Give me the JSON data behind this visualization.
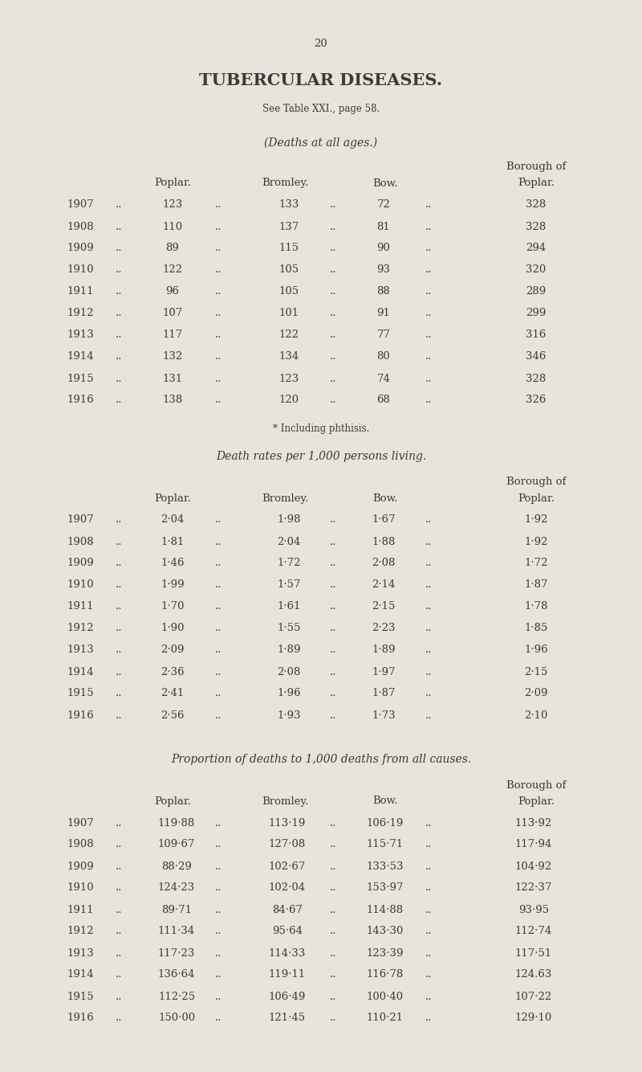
{
  "page_number": "20",
  "title": "TUBERCULAR DISEASES.",
  "subtitle": "See Table XXI., page 58.",
  "bg_color": "#e8e4db",
  "text_color": "#3a3a3a",
  "section1_header": "(Deaths at all ages.)",
  "section2_header_italic": "Death rates per ",
  "section2_header_normal": "1,000",
  "section2_header_italic2": " persons living.",
  "section3_header": "Proportion of deaths to 1,000 deaths from all causes.",
  "col_labels": [
    "Poplar.",
    "Bromley.",
    "Bow.",
    "Poplar."
  ],
  "years": [
    "1907",
    "1908",
    "1909",
    "1910",
    "1911",
    "1912",
    "1913",
    "1914",
    "1915",
    "1916"
  ],
  "footnote": "* Including phthisis.",
  "table1": [
    [
      "123",
      "133",
      "72",
      "328"
    ],
    [
      "110",
      "137",
      "81",
      "328"
    ],
    [
      "89",
      "115",
      "90",
      "294"
    ],
    [
      "122",
      "105",
      "93",
      "320"
    ],
    [
      "96",
      "105",
      "88",
      "289"
    ],
    [
      "107",
      "101",
      "91",
      "299"
    ],
    [
      "117",
      "122",
      "77",
      "316"
    ],
    [
      "132",
      "134",
      "80",
      "346"
    ],
    [
      "131",
      "123",
      "74",
      "328"
    ],
    [
      "138",
      "120",
      "68",
      "326"
    ]
  ],
  "table2": [
    [
      "2·04",
      "1·98",
      "1·67",
      "1·92"
    ],
    [
      "1·81",
      "2·04",
      "1·88",
      "1·92"
    ],
    [
      "1·46",
      "1·72",
      "2·08",
      "1·72"
    ],
    [
      "1·99",
      "1·57",
      "2·14",
      "1·87"
    ],
    [
      "1·70",
      "1·61",
      "2·15",
      "1·78"
    ],
    [
      "1·90",
      "1·55",
      "2·23",
      "1·85"
    ],
    [
      "2·09",
      "1·89",
      "1·89",
      "1·96"
    ],
    [
      "2·36",
      "2·08",
      "1·97",
      "2·15"
    ],
    [
      "2·41",
      "1·96",
      "1·87",
      "2·09"
    ],
    [
      "2·56",
      "1·93",
      "1·73",
      "2·10"
    ]
  ],
  "table3": [
    [
      "119·88",
      "113·19",
      "106·19",
      "113·92"
    ],
    [
      "109·67",
      "127·08",
      "115·71",
      "117·94"
    ],
    [
      "88·29",
      "102·67",
      "133·53",
      "104·92"
    ],
    [
      "124·23",
      "102·04",
      "153·97",
      "122·37"
    ],
    [
      "89·71",
      "84·67",
      "114·88",
      "93·95"
    ],
    [
      "111·34",
      "95·64",
      "143·30",
      "112·74"
    ],
    [
      "117·23",
      "114·33",
      "123·39",
      "117·51"
    ],
    [
      "136·64",
      "119·11",
      "116·78",
      "124.63"
    ],
    [
      "112·25",
      "106·49",
      "100·40",
      "107·22"
    ],
    [
      "150·00",
      "121·45",
      "110·21",
      "129·10"
    ]
  ]
}
